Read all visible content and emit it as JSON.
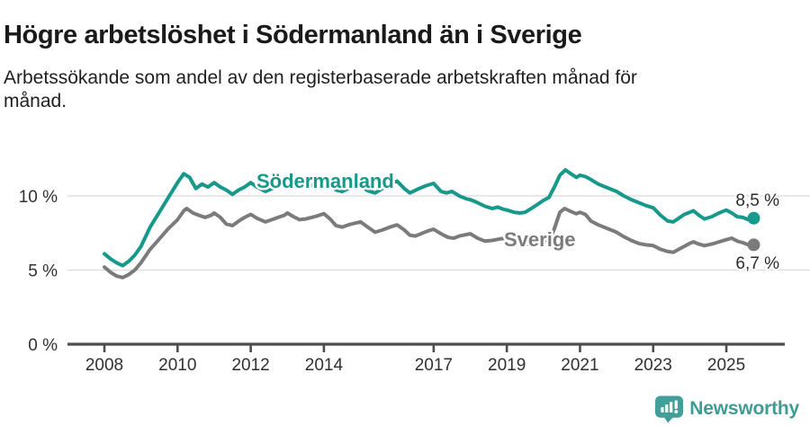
{
  "chart_data": {
    "type": "line",
    "title": "Högre arbetslöshet i Södermanland än i Sverige",
    "subtitle_lines": [
      "Arbetssökande som andel av den registerbaserade arbetskraften månad för",
      "månad."
    ],
    "unit": "%",
    "xlim": [
      2008,
      2025.75
    ],
    "ylim": [
      0,
      12
    ],
    "grid": "horizontal-light",
    "legend_position": "inline-labels",
    "y_ticks": [
      {
        "value": 10,
        "label": "10 %"
      },
      {
        "value": 5,
        "label": "5 %"
      },
      {
        "value": 0,
        "label": "0 %"
      }
    ],
    "x_ticks": [
      {
        "value": 2008,
        "label": "2008"
      },
      {
        "value": 2010,
        "label": "2010"
      },
      {
        "value": 2012,
        "label": "2012"
      },
      {
        "value": 2014,
        "label": "2014"
      },
      {
        "value": 2017,
        "label": "2017"
      },
      {
        "value": 2019,
        "label": "2019"
      },
      {
        "value": 2021,
        "label": "2021"
      },
      {
        "value": 2023,
        "label": "2023"
      },
      {
        "value": 2025,
        "label": "2025"
      }
    ],
    "series": [
      {
        "key": "sodermanland",
        "name": "Södermanland",
        "color": "#16988a",
        "end_label": "8,5 %",
        "last_value": 8.5,
        "points": [
          [
            2008.0,
            6.1
          ],
          [
            2008.17,
            5.75
          ],
          [
            2008.33,
            5.5
          ],
          [
            2008.5,
            5.3
          ],
          [
            2008.67,
            5.6
          ],
          [
            2008.83,
            6.0
          ],
          [
            2009.0,
            6.6
          ],
          [
            2009.25,
            7.9
          ],
          [
            2009.5,
            8.9
          ],
          [
            2009.75,
            9.9
          ],
          [
            2010.0,
            10.9
          ],
          [
            2010.17,
            11.5
          ],
          [
            2010.33,
            11.25
          ],
          [
            2010.5,
            10.5
          ],
          [
            2010.67,
            10.8
          ],
          [
            2010.83,
            10.6
          ],
          [
            2011.0,
            10.9
          ],
          [
            2011.17,
            10.6
          ],
          [
            2011.33,
            10.4
          ],
          [
            2011.5,
            10.1
          ],
          [
            2011.67,
            10.4
          ],
          [
            2011.83,
            10.6
          ],
          [
            2012.0,
            10.9
          ],
          [
            2012.17,
            10.6
          ],
          [
            2012.4,
            10.3
          ],
          [
            2012.58,
            10.5
          ],
          [
            2012.75,
            10.6
          ],
          [
            2012.92,
            10.8
          ],
          [
            2013.0,
            10.9
          ],
          [
            2013.17,
            11.0
          ],
          [
            2013.33,
            10.7
          ],
          [
            2013.5,
            10.6
          ],
          [
            2013.75,
            10.8
          ],
          [
            2014.0,
            11.05
          ],
          [
            2014.17,
            10.8
          ],
          [
            2014.33,
            10.4
          ],
          [
            2014.5,
            10.3
          ],
          [
            2014.67,
            10.5
          ],
          [
            2014.83,
            10.6
          ],
          [
            2015.0,
            10.7
          ],
          [
            2015.2,
            10.35
          ],
          [
            2015.4,
            10.2
          ],
          [
            2015.6,
            10.5
          ],
          [
            2015.8,
            10.8
          ],
          [
            2016.0,
            11.0
          ],
          [
            2016.2,
            10.5
          ],
          [
            2016.35,
            10.2
          ],
          [
            2016.6,
            10.5
          ],
          [
            2016.8,
            10.7
          ],
          [
            2017.0,
            10.85
          ],
          [
            2017.2,
            10.3
          ],
          [
            2017.35,
            10.2
          ],
          [
            2017.5,
            10.3
          ],
          [
            2017.7,
            10.0
          ],
          [
            2017.9,
            9.8
          ],
          [
            2018.0,
            9.75
          ],
          [
            2018.15,
            9.6
          ],
          [
            2018.4,
            9.3
          ],
          [
            2018.6,
            9.15
          ],
          [
            2018.75,
            9.25
          ],
          [
            2018.9,
            9.1
          ],
          [
            2019.0,
            9.05
          ],
          [
            2019.2,
            8.9
          ],
          [
            2019.35,
            8.85
          ],
          [
            2019.5,
            8.9
          ],
          [
            2019.7,
            9.2
          ],
          [
            2019.85,
            9.45
          ],
          [
            2020.0,
            9.7
          ],
          [
            2020.15,
            9.9
          ],
          [
            2020.3,
            10.6
          ],
          [
            2020.45,
            11.4
          ],
          [
            2020.6,
            11.75
          ],
          [
            2020.75,
            11.5
          ],
          [
            2020.9,
            11.25
          ],
          [
            2021.0,
            11.4
          ],
          [
            2021.15,
            11.3
          ],
          [
            2021.3,
            11.1
          ],
          [
            2021.5,
            10.8
          ],
          [
            2021.7,
            10.6
          ],
          [
            2021.85,
            10.45
          ],
          [
            2022.0,
            10.3
          ],
          [
            2022.2,
            10.0
          ],
          [
            2022.4,
            9.75
          ],
          [
            2022.6,
            9.55
          ],
          [
            2022.8,
            9.35
          ],
          [
            2023.0,
            9.2
          ],
          [
            2023.2,
            8.7
          ],
          [
            2023.4,
            8.3
          ],
          [
            2023.55,
            8.25
          ],
          [
            2023.7,
            8.5
          ],
          [
            2023.85,
            8.75
          ],
          [
            2024.0,
            8.9
          ],
          [
            2024.1,
            9.0
          ],
          [
            2024.25,
            8.7
          ],
          [
            2024.4,
            8.45
          ],
          [
            2024.6,
            8.6
          ],
          [
            2024.8,
            8.85
          ],
          [
            2025.0,
            9.05
          ],
          [
            2025.15,
            8.85
          ],
          [
            2025.3,
            8.6
          ],
          [
            2025.45,
            8.55
          ],
          [
            2025.6,
            8.4
          ],
          [
            2025.75,
            8.5
          ]
        ]
      },
      {
        "key": "sverige",
        "name": "Sverige",
        "color": "#7b7b7b",
        "end_label": "6,7 %",
        "last_value": 6.7,
        "points": [
          [
            2008.0,
            5.2
          ],
          [
            2008.17,
            4.85
          ],
          [
            2008.33,
            4.6
          ],
          [
            2008.5,
            4.5
          ],
          [
            2008.67,
            4.7
          ],
          [
            2008.83,
            5.0
          ],
          [
            2009.0,
            5.5
          ],
          [
            2009.25,
            6.4
          ],
          [
            2009.5,
            7.1
          ],
          [
            2009.75,
            7.8
          ],
          [
            2010.0,
            8.4
          ],
          [
            2010.17,
            9.0
          ],
          [
            2010.25,
            9.15
          ],
          [
            2010.42,
            8.85
          ],
          [
            2010.58,
            8.7
          ],
          [
            2010.75,
            8.55
          ],
          [
            2010.92,
            8.7
          ],
          [
            2011.0,
            8.85
          ],
          [
            2011.17,
            8.55
          ],
          [
            2011.33,
            8.1
          ],
          [
            2011.5,
            8.0
          ],
          [
            2011.67,
            8.3
          ],
          [
            2011.83,
            8.55
          ],
          [
            2012.0,
            8.75
          ],
          [
            2012.17,
            8.5
          ],
          [
            2012.4,
            8.25
          ],
          [
            2012.58,
            8.4
          ],
          [
            2012.75,
            8.55
          ],
          [
            2012.92,
            8.7
          ],
          [
            2013.0,
            8.85
          ],
          [
            2013.17,
            8.6
          ],
          [
            2013.33,
            8.4
          ],
          [
            2013.5,
            8.45
          ],
          [
            2013.75,
            8.6
          ],
          [
            2014.0,
            8.8
          ],
          [
            2014.17,
            8.45
          ],
          [
            2014.33,
            8.0
          ],
          [
            2014.5,
            7.9
          ],
          [
            2014.67,
            8.05
          ],
          [
            2014.83,
            8.15
          ],
          [
            2015.0,
            8.25
          ],
          [
            2015.2,
            7.9
          ],
          [
            2015.4,
            7.55
          ],
          [
            2015.6,
            7.7
          ],
          [
            2015.8,
            7.9
          ],
          [
            2016.0,
            8.05
          ],
          [
            2016.2,
            7.7
          ],
          [
            2016.35,
            7.35
          ],
          [
            2016.5,
            7.3
          ],
          [
            2016.7,
            7.5
          ],
          [
            2016.85,
            7.65
          ],
          [
            2017.0,
            7.75
          ],
          [
            2017.2,
            7.45
          ],
          [
            2017.4,
            7.2
          ],
          [
            2017.55,
            7.15
          ],
          [
            2017.7,
            7.3
          ],
          [
            2017.9,
            7.4
          ],
          [
            2018.0,
            7.45
          ],
          [
            2018.2,
            7.15
          ],
          [
            2018.4,
            6.95
          ],
          [
            2018.6,
            7.0
          ],
          [
            2018.8,
            7.1
          ],
          [
            2019.0,
            7.15
          ],
          [
            2019.2,
            6.9
          ],
          [
            2019.4,
            6.78
          ],
          [
            2019.55,
            6.75
          ],
          [
            2019.7,
            6.85
          ],
          [
            2019.85,
            6.95
          ],
          [
            2020.0,
            7.05
          ],
          [
            2020.15,
            6.9
          ],
          [
            2020.3,
            7.8
          ],
          [
            2020.45,
            8.9
          ],
          [
            2020.58,
            9.15
          ],
          [
            2020.75,
            8.95
          ],
          [
            2020.9,
            8.8
          ],
          [
            2021.0,
            8.9
          ],
          [
            2021.15,
            8.75
          ],
          [
            2021.3,
            8.3
          ],
          [
            2021.5,
            8.05
          ],
          [
            2021.7,
            7.85
          ],
          [
            2021.85,
            7.7
          ],
          [
            2022.0,
            7.55
          ],
          [
            2022.2,
            7.25
          ],
          [
            2022.4,
            7.0
          ],
          [
            2022.6,
            6.8
          ],
          [
            2022.8,
            6.7
          ],
          [
            2023.0,
            6.65
          ],
          [
            2023.2,
            6.4
          ],
          [
            2023.4,
            6.25
          ],
          [
            2023.55,
            6.2
          ],
          [
            2023.7,
            6.4
          ],
          [
            2023.85,
            6.6
          ],
          [
            2024.0,
            6.8
          ],
          [
            2024.1,
            6.9
          ],
          [
            2024.25,
            6.75
          ],
          [
            2024.4,
            6.65
          ],
          [
            2024.6,
            6.75
          ],
          [
            2024.8,
            6.9
          ],
          [
            2025.0,
            7.05
          ],
          [
            2025.15,
            7.15
          ],
          [
            2025.3,
            6.95
          ],
          [
            2025.45,
            6.85
          ],
          [
            2025.6,
            6.7
          ],
          [
            2025.75,
            6.7
          ]
        ]
      }
    ]
  },
  "footer": {
    "brand": "Newsworthy",
    "logo_icon": "speech-bubble-bar-chart-icon",
    "logo_color": "#419e98"
  }
}
